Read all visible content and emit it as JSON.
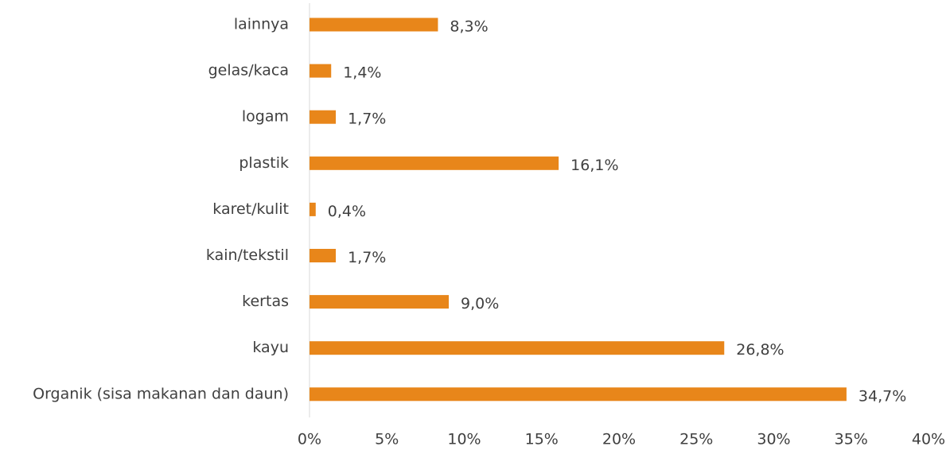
{
  "chart_data": {
    "type": "hbar",
    "categories": [
      "lainnya",
      "gelas/kaca",
      "logam",
      "plastik",
      "karet/kulit",
      "kain/tekstil",
      "kertas",
      "kayu",
      "Organik (sisa makanan dan daun)"
    ],
    "values": [
      8.3,
      1.4,
      1.7,
      16.1,
      0.4,
      1.7,
      9.0,
      26.8,
      34.7
    ],
    "value_labels": [
      "8,3%",
      "1,4%",
      "1,7%",
      "16,1%",
      "0,4%",
      "1,7%",
      "9,0%",
      "26,8%",
      "34,7%"
    ],
    "color": "#e8861a",
    "xlim": [
      0,
      40
    ],
    "xticks": [
      {
        "value": 0,
        "label": "0%"
      },
      {
        "value": 5,
        "label": "5%"
      },
      {
        "value": 10,
        "label": "10%"
      },
      {
        "value": 15,
        "label": "15%"
      },
      {
        "value": 20,
        "label": "20%"
      },
      {
        "value": 25,
        "label": "25%"
      },
      {
        "value": 30,
        "label": "30%"
      },
      {
        "value": 35,
        "label": "35%"
      },
      {
        "value": 40,
        "label": "40%"
      }
    ],
    "grid": false
  }
}
